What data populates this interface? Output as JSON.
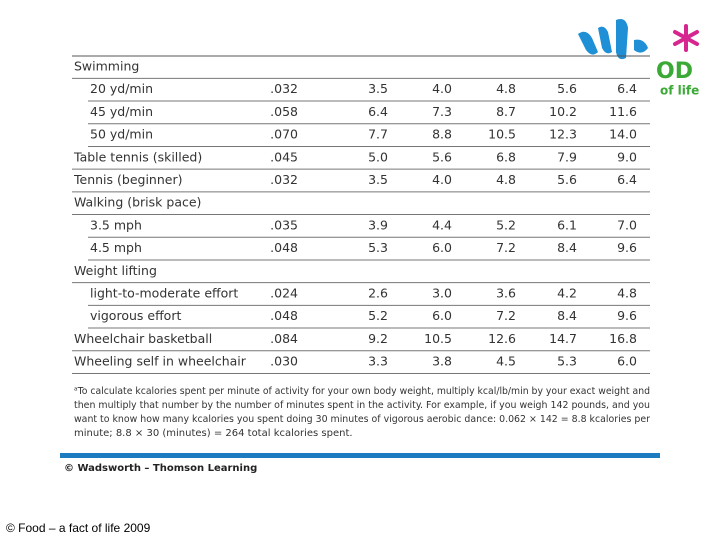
{
  "logo": {
    "text": "OD",
    "tagline": "of life"
  },
  "table": {
    "rows": [
      [
        "Swimming"
      ],
      [
        "20 yd/min",
        ".032",
        "3.5",
        "4.0",
        "4.8",
        "5.6",
        "6.4"
      ],
      [
        "45 yd/min",
        ".058",
        "6.4",
        "7.3",
        "8.7",
        "10.2",
        "11.6"
      ],
      [
        "50 yd/min",
        ".070",
        "7.7",
        "8.8",
        "10.5",
        "12.3",
        "14.0"
      ],
      [
        "Table tennis (skilled)",
        ".045",
        "5.0",
        "5.6",
        "6.8",
        "7.9",
        "9.0"
      ],
      [
        "Tennis (beginner)",
        ".032",
        "3.5",
        "4.0",
        "4.8",
        "5.6",
        "6.4"
      ],
      [
        "Walking (brisk pace)"
      ],
      [
        "3.5 mph",
        ".035",
        "3.9",
        "4.4",
        "5.2",
        "6.1",
        "7.0"
      ],
      [
        "4.5 mph",
        ".048",
        "5.3",
        "6.0",
        "7.2",
        "8.4",
        "9.6"
      ],
      [
        "Weight lifting"
      ],
      [
        "light-to-moderate effort",
        ".024",
        "2.6",
        "3.0",
        "3.6",
        "4.2",
        "4.8"
      ],
      [
        "vigorous effort",
        ".048",
        "5.2",
        "6.0",
        "7.2",
        "8.4",
        "9.6"
      ],
      [
        "Wheelchair basketball",
        ".084",
        "9.2",
        "10.5",
        "12.6",
        "14.7",
        "16.8"
      ],
      [
        "Wheeling self in wheelchair",
        ".030",
        "3.3",
        "3.8",
        "4.5",
        "5.3",
        "6.0"
      ]
    ]
  },
  "footnote": {
    "lines": [
      "ᵃTo calculate kcalories spent per minute of activity for your own body weight, multiply kcal/lb/min by your exact weight and",
      "then multiply that number by the number of minutes spent in the activity. For example, if you weigh 142 pounds, and you",
      "want to know how many kcalories you spent doing 30 minutes of vigorous aerobic dance: 0.062 × 142 = 8.8 kcalories per",
      "minute; 8.8 × 30 (minutes) = 264 total kcalories spent."
    ]
  },
  "credit": "© Wadsworth – Thomson Learning",
  "copyright": "© Food – a fact of life 2009"
}
